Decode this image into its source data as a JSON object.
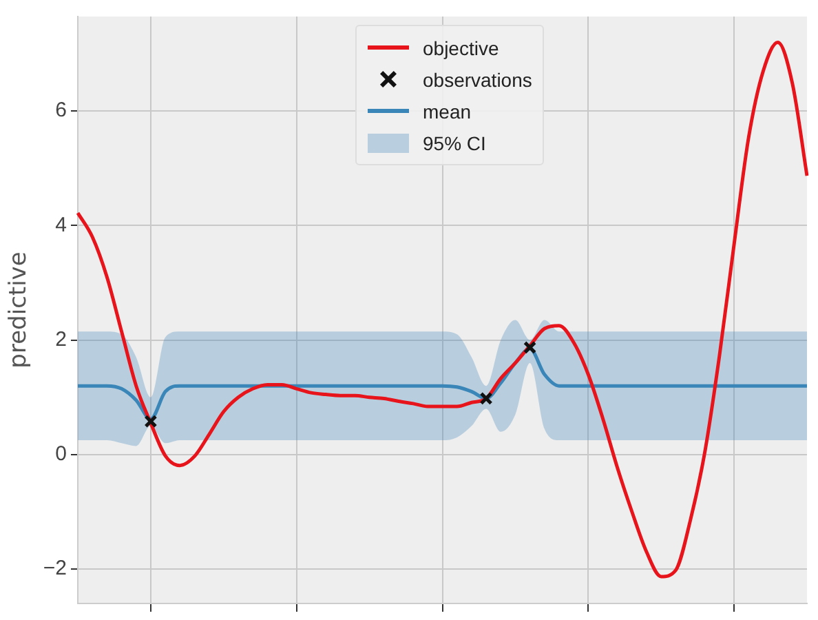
{
  "chart_data": {
    "type": "line",
    "ylabel": "predictive",
    "categories": [
      null,
      null,
      null,
      null,
      null,
      null,
      null,
      null,
      null,
      null,
      null,
      null,
      null,
      null,
      null,
      null,
      null,
      null,
      null,
      null,
      null,
      null,
      null,
      null,
      null,
      null,
      null,
      null,
      null,
      null,
      null,
      null,
      null,
      null,
      null,
      null,
      null,
      null,
      null,
      null,
      null,
      null,
      null,
      null,
      null,
      null,
      null,
      null,
      null,
      null,
      null
    ],
    "ylim": [
      -2.6,
      7.65
    ],
    "yticks": [
      -2,
      0,
      2,
      4,
      6
    ],
    "grid": true,
    "legend": "top",
    "tick_labels": "y",
    "annotations": [
      "95% CI"
    ],
    "series": [
      {
        "name": "objective",
        "type": "line",
        "color": "#e8141c",
        "values": [
          4.22,
          3.8,
          3.1,
          2.15,
          1.2,
          0.55,
          -0.02,
          -0.19,
          -0.03,
          0.35,
          0.75,
          1.0,
          1.15,
          1.22,
          1.22,
          1.15,
          1.08,
          1.05,
          1.03,
          1.03,
          1.0,
          0.98,
          0.93,
          0.89,
          0.84,
          0.84,
          0.84,
          0.91,
          0.98,
          1.33,
          1.6,
          1.9,
          2.2,
          2.25,
          1.96,
          1.4,
          0.63,
          -0.23,
          -1.0,
          -1.7,
          -2.13,
          -2.02,
          -1.15,
          0.05,
          1.73,
          3.67,
          5.54,
          6.7,
          7.2,
          6.48,
          4.87
        ]
      },
      {
        "name": "observations",
        "type": "scatter",
        "color": "#111111",
        "marker": "cross",
        "values": [
          null,
          null,
          null,
          null,
          null,
          0.58,
          null,
          null,
          null,
          null,
          null,
          null,
          null,
          null,
          null,
          null,
          null,
          null,
          null,
          null,
          null,
          null,
          null,
          null,
          null,
          null,
          null,
          null,
          0.98,
          null,
          null,
          1.87,
          null,
          null,
          null,
          null,
          null,
          null,
          null,
          null,
          null,
          null,
          null,
          null,
          null,
          null,
          null,
          null,
          null,
          null,
          null
        ]
      },
      {
        "name": "mean",
        "type": "line",
        "color": "#3a86b8",
        "values": [
          1.2,
          1.2,
          1.2,
          1.15,
          0.95,
          0.62,
          1.1,
          1.2,
          1.2,
          1.2,
          1.2,
          1.2,
          1.2,
          1.2,
          1.2,
          1.2,
          1.2,
          1.2,
          1.2,
          1.2,
          1.2,
          1.2,
          1.2,
          1.2,
          1.2,
          1.2,
          1.18,
          1.1,
          0.98,
          1.25,
          1.6,
          1.85,
          1.4,
          1.2,
          1.2,
          1.2,
          1.2,
          1.2,
          1.2,
          1.2,
          1.2,
          1.2,
          1.2,
          1.2,
          1.2,
          1.2,
          1.2,
          1.2,
          1.2,
          1.2,
          1.2
        ],
        "lower": [
          0.25,
          0.25,
          0.25,
          0.2,
          0.15,
          0.5,
          0.2,
          0.25,
          0.25,
          0.25,
          0.25,
          0.25,
          0.25,
          0.25,
          0.25,
          0.25,
          0.25,
          0.25,
          0.25,
          0.25,
          0.25,
          0.25,
          0.25,
          0.25,
          0.25,
          0.25,
          0.3,
          0.5,
          0.8,
          0.4,
          0.7,
          1.6,
          0.45,
          0.25,
          0.25,
          0.25,
          0.25,
          0.25,
          0.25,
          0.25,
          0.25,
          0.25,
          0.25,
          0.25,
          0.25,
          0.25,
          0.25,
          0.25,
          0.25,
          0.25,
          0.25
        ],
        "upper": [
          2.15,
          2.15,
          2.15,
          2.1,
          1.7,
          1.0,
          2.05,
          2.15,
          2.15,
          2.15,
          2.15,
          2.15,
          2.15,
          2.15,
          2.15,
          2.15,
          2.15,
          2.15,
          2.15,
          2.15,
          2.15,
          2.15,
          2.15,
          2.15,
          2.15,
          2.15,
          2.1,
          1.7,
          1.2,
          2.0,
          2.35,
          2.0,
          2.35,
          2.15,
          2.15,
          2.15,
          2.15,
          2.15,
          2.15,
          2.15,
          2.15,
          2.15,
          2.15,
          2.15,
          2.15,
          2.15,
          2.15,
          2.15,
          2.15,
          2.15,
          2.15
        ]
      }
    ]
  }
}
